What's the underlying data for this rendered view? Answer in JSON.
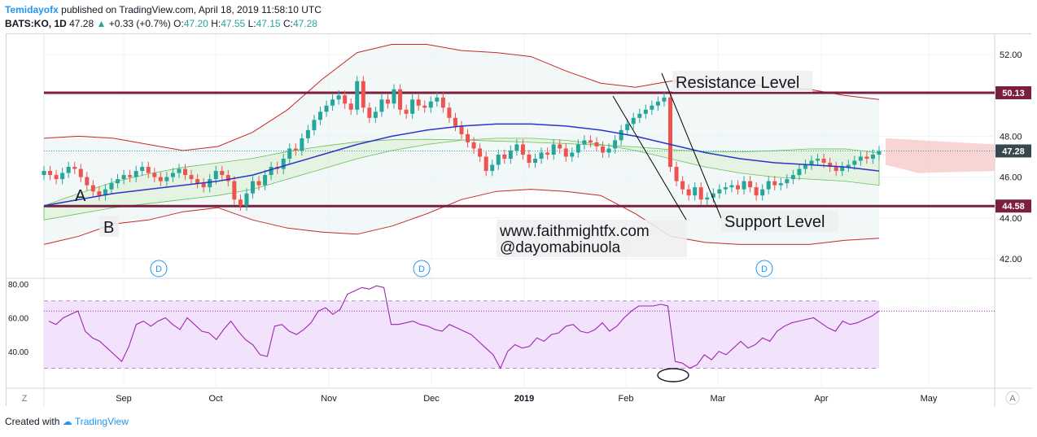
{
  "header": {
    "author": "Temidayofx",
    "published_text": "published on TradingView.com, April 18, 2019 11:58:10 UTC",
    "symbol": "BATS:KO, 1D",
    "last": "47.28",
    "change": "+0.33 (+0.7%)",
    "o_label": "O:",
    "o": "47.20",
    "h_label": "H:",
    "h": "47.55",
    "l_label": "L:",
    "l": "47.15",
    "c_label": "C:",
    "c": "47.28"
  },
  "footer": {
    "created_with": "Created with",
    "brand": "TradingView"
  },
  "colors": {
    "bull": "#26a69a",
    "bear": "#ef5350",
    "level": "#7b1f3f",
    "bb": "#c62828",
    "sma": "#2b35c8",
    "cloud_green": "#6bbf59",
    "cloud_red": "#f5c2c2",
    "rsi": "#9c27b0",
    "rsi_fill": "#f3e2fb",
    "last_price": "#37474f"
  },
  "chart_data": [
    {
      "type": "candlestick",
      "symbol": "BATS:KO",
      "timeframe": "1D",
      "x_labels": [
        "Sep",
        "Oct",
        "Nov",
        "Dec",
        "2019",
        "Feb",
        "Mar",
        "Apr",
        "May"
      ],
      "y_ticks": [
        "52.00",
        "50.00",
        "48.00",
        "46.00",
        "44.00",
        "42.00"
      ],
      "ylim": [
        41.2,
        53.0
      ],
      "close_series": [
        46.3,
        46.1,
        45.9,
        46.2,
        46.5,
        46.4,
        46.0,
        45.6,
        45.3,
        45.1,
        45.4,
        45.7,
        45.9,
        46.1,
        46.0,
        46.3,
        46.5,
        46.2,
        46.0,
        45.8,
        46.0,
        46.2,
        46.4,
        46.1,
        45.9,
        45.7,
        45.5,
        45.9,
        46.3,
        46.1,
        45.8,
        44.9,
        44.6,
        45.2,
        45.8,
        45.6,
        46.1,
        46.5,
        46.4,
        46.9,
        47.4,
        47.3,
        47.9,
        48.3,
        48.8,
        49.2,
        49.5,
        49.8,
        50.0,
        49.6,
        49.3,
        50.7,
        49.4,
        48.9,
        49.2,
        49.8,
        49.6,
        50.3,
        49.3,
        49.1,
        49.8,
        49.5,
        49.4,
        49.7,
        49.9,
        49.4,
        48.9,
        48.5,
        48.1,
        47.7,
        47.4,
        47.0,
        46.3,
        46.6,
        47.1,
        46.9,
        47.3,
        47.6,
        47.1,
        46.7,
        46.9,
        47.2,
        47.1,
        47.6,
        47.4,
        47.0,
        47.2,
        47.6,
        47.8,
        47.7,
        47.5,
        47.2,
        47.4,
        47.8,
        48.3,
        48.6,
        48.9,
        49.1,
        49.3,
        49.5,
        49.7,
        49.9,
        46.5,
        45.8,
        45.4,
        45.1,
        45.5,
        44.9,
        45.0,
        45.2,
        45.4,
        45.5,
        45.6,
        45.4,
        45.8,
        45.5,
        45.1,
        45.4,
        45.8,
        45.6,
        45.7,
        45.9,
        46.1,
        46.4,
        46.6,
        46.8,
        46.9,
        46.7,
        46.5,
        46.3,
        46.5,
        46.6,
        46.8,
        47.0,
        46.9,
        47.1,
        47.28
      ],
      "sma_series": [
        44.6,
        44.9,
        45.2,
        45.4,
        45.6,
        45.8,
        46.1,
        46.6,
        47.1,
        47.6,
        48.0,
        48.3,
        48.5,
        48.6,
        48.6,
        48.5,
        48.3,
        48.0,
        47.6,
        47.2,
        46.9,
        46.7,
        46.6,
        46.5,
        46.3
      ],
      "bb_upper": [
        47.9,
        48.0,
        47.9,
        47.6,
        47.3,
        47.5,
        48.2,
        49.3,
        50.8,
        52.1,
        52.5,
        52.5,
        52.2,
        52.1,
        51.9,
        51.2,
        50.6,
        50.4,
        50.7,
        50.8,
        50.6,
        50.4,
        50.3,
        50.0,
        49.8
      ],
      "bb_lower": [
        42.7,
        43.1,
        43.7,
        43.9,
        44.3,
        44.5,
        43.9,
        43.5,
        43.3,
        43.2,
        43.6,
        44.2,
        44.9,
        45.3,
        45.4,
        45.3,
        45.1,
        44.2,
        43.1,
        42.8,
        42.7,
        42.7,
        42.7,
        42.9,
        43.0
      ],
      "resistance": 50.13,
      "support": 44.58,
      "last_price": 47.28,
      "price_labels": [
        "50.13",
        "47.28",
        "44.58"
      ],
      "dividend_marks": [
        "D",
        "D",
        "D"
      ],
      "annotations": {
        "resistance": "Resistance Level",
        "support": "Support Level",
        "point_a": "A",
        "point_b": "B",
        "watermark_line1": "www.faithmightfx.com",
        "watermark_line2": "@dayomabinuola"
      }
    },
    {
      "type": "line",
      "indicator": "RSI",
      "y_ticks": [
        "80.00",
        "60.00",
        "40.00"
      ],
      "ylim": [
        22,
        82
      ],
      "bands": [
        70,
        30
      ],
      "current_level": 64,
      "values": [
        58,
        56,
        60,
        62,
        64,
        52,
        48,
        46,
        42,
        38,
        34,
        43,
        56,
        58,
        55,
        58,
        60,
        56,
        53,
        60,
        56,
        52,
        51,
        47,
        53,
        58,
        52,
        47,
        44,
        38,
        37,
        55,
        56,
        52,
        50,
        53,
        57,
        64,
        66,
        62,
        65,
        74,
        76,
        78,
        77,
        79,
        78,
        56,
        56,
        57,
        58,
        56,
        55,
        53,
        52,
        56,
        54,
        52,
        50,
        46,
        42,
        38,
        30,
        40,
        44,
        42,
        43,
        48,
        46,
        50,
        51,
        55,
        56,
        52,
        51,
        53,
        57,
        52,
        55,
        60,
        64,
        67,
        67,
        67,
        68,
        67,
        34,
        33,
        30,
        32,
        38,
        35,
        40,
        38,
        42,
        46,
        42,
        44,
        48,
        46,
        52,
        55,
        57,
        58,
        59,
        60,
        57,
        54,
        52,
        58,
        56,
        57,
        59,
        61,
        64
      ]
    }
  ],
  "axis_buttons": {
    "left": "Z",
    "right": "A"
  }
}
